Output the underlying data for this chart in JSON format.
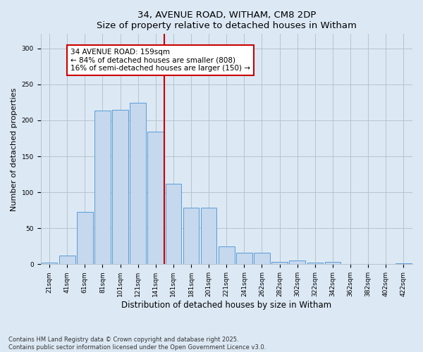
{
  "title1": "34, AVENUE ROAD, WITHAM, CM8 2DP",
  "title2": "Size of property relative to detached houses in Witham",
  "xlabel": "Distribution of detached houses by size in Witham",
  "ylabel": "Number of detached properties",
  "bar_labels": [
    "21sqm",
    "41sqm",
    "61sqm",
    "81sqm",
    "101sqm",
    "121sqm",
    "141sqm",
    "161sqm",
    "181sqm",
    "201sqm",
    "221sqm",
    "241sqm",
    "262sqm",
    "282sqm",
    "302sqm",
    "322sqm",
    "342sqm",
    "362sqm",
    "382sqm",
    "402sqm",
    "422sqm"
  ],
  "bar_values": [
    2,
    12,
    73,
    214,
    215,
    224,
    184,
    112,
    79,
    79,
    25,
    16,
    16,
    3,
    5,
    2,
    3,
    0,
    0,
    0,
    1
  ],
  "bar_color": "#c5d8ee",
  "bar_edge_color": "#5b9bd5",
  "grid_color": "#b0bec5",
  "vline_color": "#cc0000",
  "annotation_text": "34 AVENUE ROAD: 159sqm\n← 84% of detached houses are smaller (808)\n16% of semi-detached houses are larger (150) →",
  "annotation_box_color": "#cc0000",
  "ylim": [
    0,
    320
  ],
  "yticks": [
    0,
    50,
    100,
    150,
    200,
    250,
    300
  ],
  "footnote1": "Contains HM Land Registry data © Crown copyright and database right 2025.",
  "footnote2": "Contains public sector information licensed under the Open Government Licence v3.0.",
  "bg_color": "#dce9f5",
  "title_fontsize": 9.5,
  "ylabel_fontsize": 8,
  "xlabel_fontsize": 8.5,
  "tick_fontsize": 6.5,
  "ann_fontsize": 7.5,
  "footnote_fontsize": 6
}
